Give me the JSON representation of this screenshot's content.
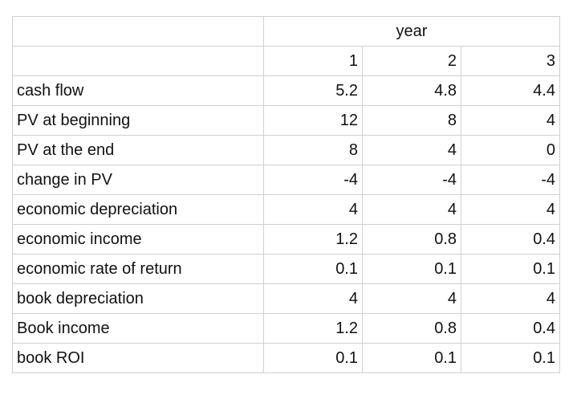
{
  "table": {
    "header": "year",
    "columns": [
      "1",
      "2",
      "3"
    ],
    "rows": [
      [
        "cash flow",
        "5.2",
        "4.8",
        "4.4"
      ],
      [
        "PV at beginning",
        "12",
        "8",
        "4"
      ],
      [
        "PV at the end",
        "8",
        "4",
        "0"
      ],
      [
        "change in PV",
        "-4",
        "-4",
        "-4"
      ],
      [
        "economic depreciation",
        "4",
        "4",
        "4"
      ],
      [
        "economic income",
        "1.2",
        "0.8",
        "0.4"
      ],
      [
        "economic rate of return",
        "0.1",
        "0.1",
        "0.1"
      ],
      [
        "book depreciation",
        "4",
        "4",
        "4"
      ],
      [
        "Book income",
        "1.2",
        "0.8",
        "0.4"
      ],
      [
        "book ROI",
        "0.1",
        "0.1",
        "0.1"
      ]
    ]
  }
}
